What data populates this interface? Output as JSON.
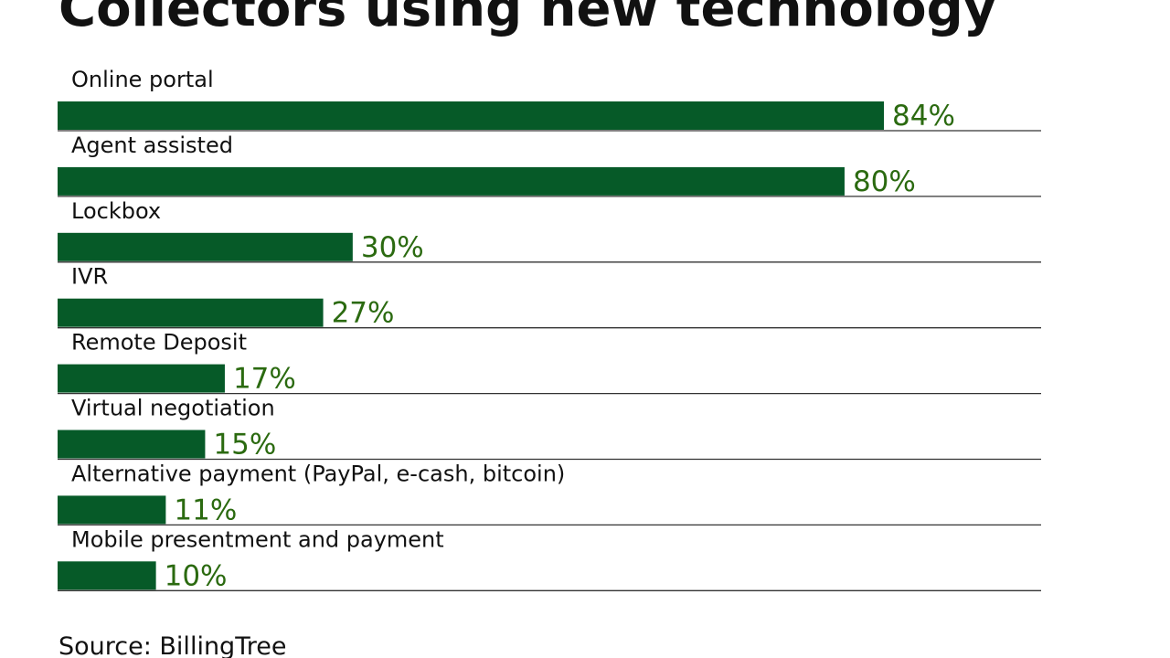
{
  "chart_data": {
    "type": "bar",
    "orientation": "horizontal",
    "title": "Collectors using new technology",
    "categories": [
      "Online portal",
      "Agent assisted",
      "Lockbox",
      "IVR",
      "Remote Deposit",
      "Virtual negotiation",
      "Alternative payment (PayPal, e-cash, bitcoin)",
      "Mobile presentment and payment"
    ],
    "values": [
      84,
      80,
      30,
      27,
      17,
      15,
      11,
      10
    ],
    "value_labels": [
      "84%",
      "80%",
      "30%",
      "27%",
      "17%",
      "15%",
      "11%",
      "10%"
    ],
    "unit": "%",
    "xlim": [
      0,
      100
    ],
    "grid": false,
    "legend": "none"
  },
  "source": "Source: BillingTree",
  "colors": {
    "bar": "#065a28",
    "value_label": "#2b6a10",
    "rule": "#333333",
    "text": "#111111"
  }
}
